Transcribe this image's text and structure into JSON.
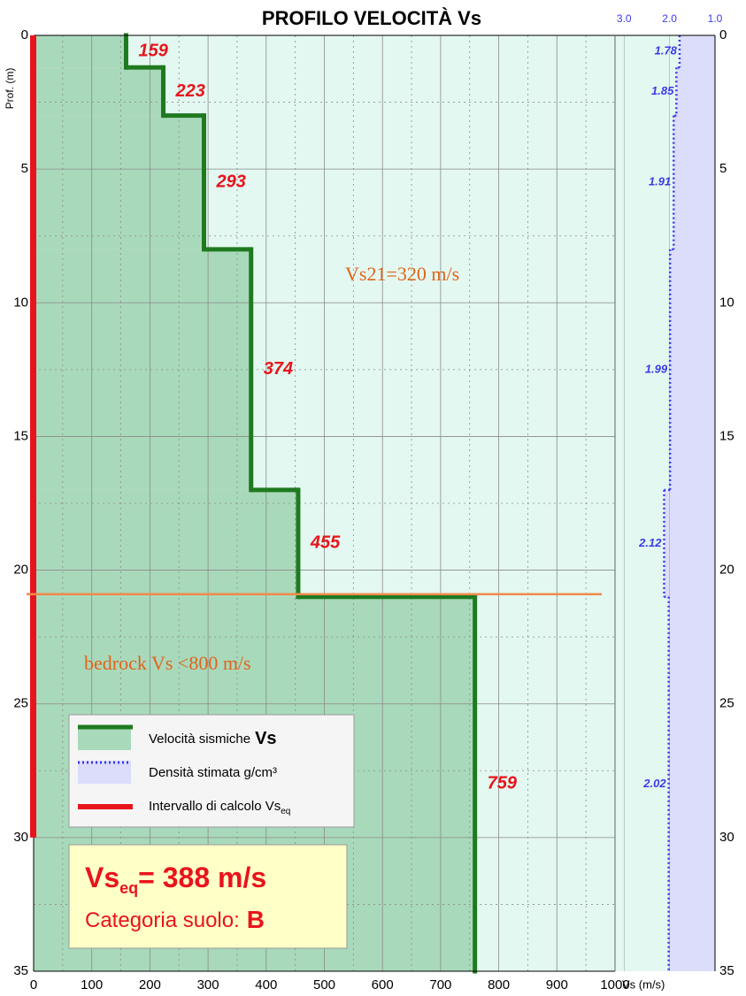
{
  "chart_data": {
    "type": "step",
    "title": "PROFILO VELOCITÀ Vs",
    "y_label": "Prof. (m)",
    "x_label": "Vs (m/s)",
    "xlim": [
      0,
      1000
    ],
    "xticks": [
      0,
      100,
      200,
      300,
      400,
      500,
      600,
      700,
      800,
      900,
      1000
    ],
    "ylim": [
      0,
      35
    ],
    "yticks": [
      0,
      5,
      10,
      15,
      20,
      25,
      30,
      35
    ],
    "grid": true,
    "depth_breaks": [
      0,
      1.2,
      3,
      8,
      17,
      21,
      35
    ],
    "vs": {
      "values": [
        159,
        223,
        293,
        374,
        455,
        759
      ],
      "color": "#1f7a1f",
      "fill": "#a9d9bb"
    },
    "density": {
      "values": [
        1.78,
        1.85,
        1.91,
        1.99,
        2.12,
        2.02
      ],
      "color": "#3a3ae8",
      "fill": "#dcdcfb",
      "xlim": [
        3.2,
        1.0
      ],
      "xticks": [
        {
          "value": 3,
          "label": "3.0"
        },
        {
          "value": 2,
          "label": "2.0"
        },
        {
          "value": 1,
          "label": "1.0"
        }
      ]
    },
    "calc_interval": [
      0,
      30
    ],
    "calc_color": "#e8141c",
    "reference_depth": 20.9,
    "reference_color": "#f08a4b",
    "annotations": [
      "Vs21=320 m/s",
      "bedrock Vs <800 m/s"
    ],
    "legend": [
      {
        "label": "Velocità sismiche",
        "bold": "Vs"
      },
      {
        "label": "Densità stimata g/cm³"
      },
      {
        "label": "Intervallo di calcolo Vs",
        "sub": "eq"
      }
    ],
    "result": {
      "symbol": "Vs",
      "sub": "eq",
      "text": "= 388 m/s",
      "category_label": "Categoria suolo:",
      "category": "B"
    }
  }
}
